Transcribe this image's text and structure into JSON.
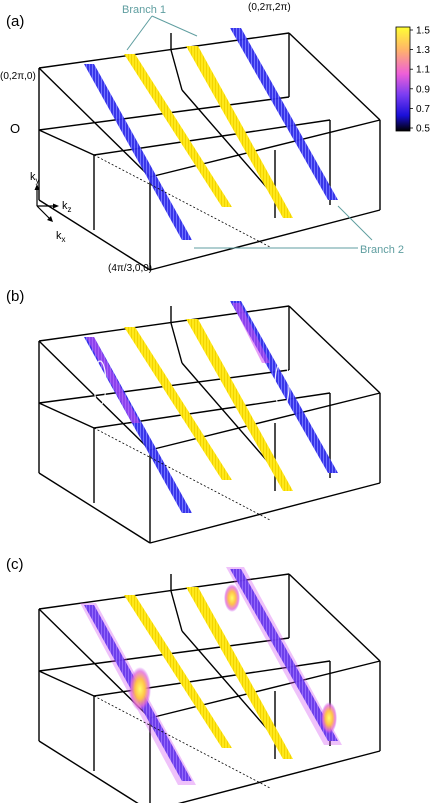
{
  "panels": [
    {
      "label": "(a)",
      "variant": "a"
    },
    {
      "label": "(b)",
      "variant": "b"
    },
    {
      "label": "(c)",
      "variant": "c"
    }
  ],
  "annotations": {
    "branch1": "Branch 1",
    "branch2": "Branch 2",
    "origin": "O",
    "corner_ky": "(0,2π,0)",
    "corner_kykz": "(0,2π,2π)",
    "corner_kx": "(4π/3,0,0)"
  },
  "axes": {
    "ky": "k",
    "ky_sub": "y",
    "kz": "k",
    "kz_sub": "z",
    "kx": "k",
    "kx_sub": "x"
  },
  "colorbar": {
    "ticks": [
      "1.5",
      "1.3",
      "1.1",
      "0.9",
      "0.7",
      "0.5"
    ],
    "min": 0.5,
    "max": 1.5,
    "stops": [
      "#000000",
      "#1a0fd9",
      "#7b3df2",
      "#ee5fd8",
      "#ffb36a",
      "#ffff33"
    ]
  },
  "colors": {
    "branch1": "#ffe81a",
    "branch2": "#2f2be8",
    "magenta": "#d24ff0",
    "leader": "#5f9ea0"
  }
}
